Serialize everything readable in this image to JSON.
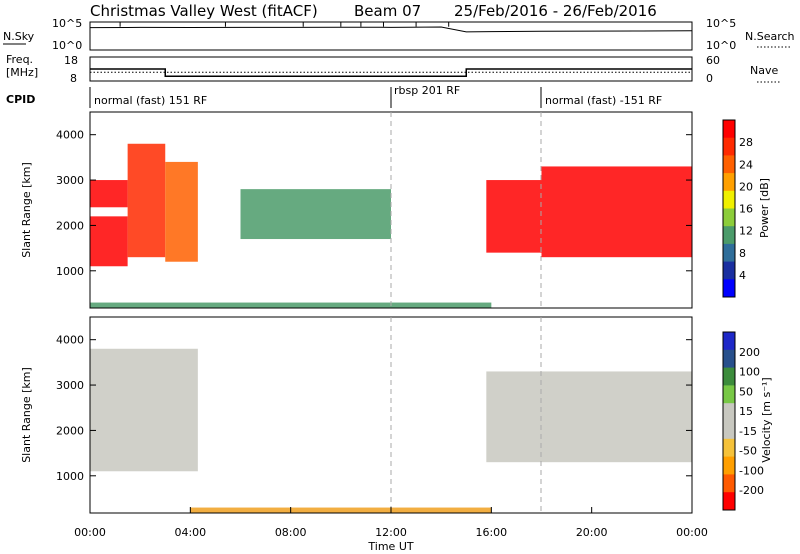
{
  "title": {
    "radar": "Christmas Valley West (fitACF)",
    "beam": "Beam 07",
    "dates": "25/Feb/2016 - 26/Feb/2016"
  },
  "top_panels": {
    "nsky_label": "N.Sky",
    "nsearch_label": "N.Search",
    "freq_label_1": "Freq.",
    "freq_label_2": "[MHz]",
    "nave_label": "Nave",
    "cpid_label": "CPID",
    "noise_ticks": [
      "10^5",
      "10^0"
    ],
    "freq_ticks": [
      "18",
      "8"
    ],
    "nave_ticks": [
      "60",
      "0"
    ],
    "modes": [
      {
        "label": "normal (fast) 151 RF",
        "start_h": 0.0
      },
      {
        "label": "rbsp 201 RF",
        "start_h": 12.0
      },
      {
        "label": "normal (fast) -151 RF",
        "start_h": 18.0
      }
    ]
  },
  "power_panel": {
    "ylabel": "Slant Range [km]",
    "yticks": [
      "4000",
      "3000",
      "2000",
      "1000"
    ],
    "colorbar_label": "Power [dB]",
    "colorbar_ticks": [
      "28",
      "24",
      "20",
      "16",
      "12",
      "8",
      "4"
    ]
  },
  "velocity_panel": {
    "ylabel": "Slant Range [km]",
    "yticks": [
      "4000",
      "3000",
      "2000",
      "1000"
    ],
    "colorbar_label": "Velocity [m s⁻¹]",
    "colorbar_ticks": [
      "200",
      "100",
      "50",
      "15",
      "-15",
      "-50",
      "-100",
      "-200"
    ]
  },
  "x_axis": {
    "label": "Time UT",
    "ticks": [
      "00:00",
      "04:00",
      "08:00",
      "12:00",
      "16:00",
      "20:00",
      "00:00"
    ]
  },
  "colors": {
    "power_scale": [
      "#0000ff",
      "#1a2fa0",
      "#2f6e9a",
      "#4b9b6a",
      "#8ccd3a",
      "#f0f000",
      "#ffa000",
      "#ff6000",
      "#ff2a00",
      "#ff0000"
    ],
    "velocity_scale": [
      "#ff0000",
      "#ff5a00",
      "#ff9f00",
      "#f5c23a",
      "#c8c8c0",
      "#c8c8c0",
      "#78c846",
      "#3c8c3c",
      "#28508c",
      "#1e28c8"
    ],
    "ground_scatter": "#c8c8c0",
    "dashed_guides": "#aaaaaa"
  },
  "chart_data": [
    {
      "type": "line",
      "name_label": "N.Sky / N.Search",
      "x_unit": "hours UT",
      "xlim": [
        0,
        24
      ],
      "description_series": [
        {
          "name": "N.Sky",
          "x": [
            0,
            2,
            4,
            6,
            8,
            10,
            12,
            14,
            15,
            16,
            18,
            20,
            22,
            24
          ],
          "y": [
            20000,
            22000,
            21000,
            23000,
            22000,
            24000,
            23000,
            26000,
            3000,
            3500,
            4000,
            4200,
            4500,
            5000
          ]
        }
      ]
    },
    {
      "type": "line",
      "name_label": "Freq. / Nave",
      "xlim": [
        0,
        24
      ],
      "series": [
        {
          "name": "Freq.",
          "x": [
            0,
            3.0,
            3.0,
            15.0,
            15.0,
            24
          ],
          "y": [
            13.0,
            13.0,
            10.0,
            10.0,
            13.0,
            13.0
          ]
        },
        {
          "name": "Nave",
          "x": [
            0,
            24
          ],
          "y": [
            22,
            22
          ]
        }
      ]
    },
    {
      "type": "heatmap",
      "panel": "power",
      "xlim": [
        0,
        24
      ],
      "ylim": [
        180,
        4500
      ],
      "value_unit": "dB",
      "regions": [
        {
          "x": [
            0.0,
            1.5
          ],
          "y": [
            1100,
            2200
          ],
          "power": 30
        },
        {
          "x": [
            0.0,
            1.5
          ],
          "y": [
            2400,
            3000
          ],
          "power": 30
        },
        {
          "x": [
            1.5,
            3.0
          ],
          "y": [
            1300,
            3800
          ],
          "power": 24
        },
        {
          "x": [
            3.0,
            4.3
          ],
          "y": [
            1200,
            3400
          ],
          "power": 22
        },
        {
          "x": [
            6.0,
            12.0
          ],
          "y": [
            1700,
            2800
          ],
          "power": 8
        },
        {
          "x": [
            15.8,
            18.0
          ],
          "y": [
            1400,
            3000
          ],
          "power": 28
        },
        {
          "x": [
            18.0,
            24.0
          ],
          "y": [
            1300,
            3300
          ],
          "power": 30
        },
        {
          "x": [
            0.0,
            16.0
          ],
          "y": [
            180,
            300
          ],
          "power": 10
        }
      ]
    },
    {
      "type": "heatmap",
      "panel": "velocity",
      "xlim": [
        0,
        24
      ],
      "ylim": [
        180,
        4500
      ],
      "value_unit": "m/s",
      "regions": [
        {
          "x": [
            0.0,
            4.3
          ],
          "y": [
            1100,
            3800
          ],
          "velocity": 0
        },
        {
          "x": [
            15.8,
            24.0
          ],
          "y": [
            1300,
            3300
          ],
          "velocity": 0
        },
        {
          "x": [
            4.0,
            16.0
          ],
          "y": [
            180,
            300
          ],
          "velocity": -60
        }
      ]
    }
  ]
}
